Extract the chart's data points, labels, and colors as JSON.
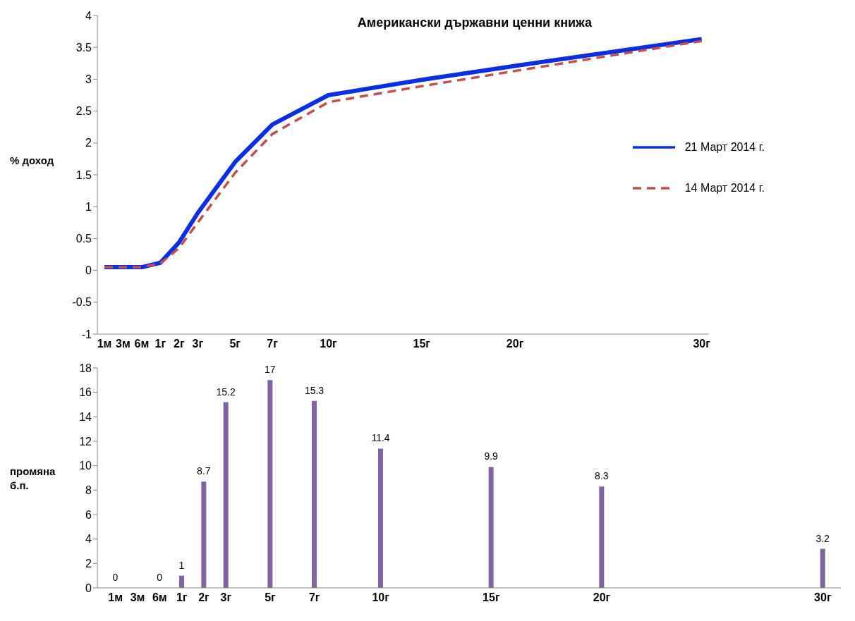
{
  "chart_data": [
    {
      "type": "line",
      "title": "Американски държавни ценни книжа",
      "ylabel": "% доход",
      "categories": [
        "1м",
        "3м",
        "6м",
        "1г",
        "2г",
        "3г",
        null,
        "5г",
        null,
        "7г",
        null,
        null,
        "10г",
        null,
        null,
        null,
        null,
        "15г",
        null,
        null,
        null,
        null,
        "20г",
        null,
        null,
        null,
        null,
        null,
        null,
        null,
        null,
        null,
        "30г"
      ],
      "series": [
        {
          "name": "21 Март 2014 г.",
          "color": "#0a2ee0",
          "line_style": "solid",
          "values": [
            0.05,
            0.05,
            0.05,
            0.12,
            0.44,
            0.9,
            null,
            1.7,
            null,
            2.29,
            null,
            null,
            2.75,
            null,
            null,
            null,
            null,
            2.99,
            null,
            null,
            null,
            null,
            3.21,
            null,
            null,
            null,
            null,
            null,
            null,
            null,
            null,
            null,
            3.63
          ]
        },
        {
          "name": "14 Март 2014 г.",
          "color": "#c0504d",
          "line_style": "dashed",
          "values": [
            0.05,
            0.05,
            0.05,
            0.11,
            0.35,
            0.75,
            null,
            1.53,
            null,
            2.14,
            null,
            null,
            2.64,
            null,
            null,
            null,
            null,
            2.89,
            null,
            null,
            null,
            null,
            3.13,
            null,
            null,
            null,
            null,
            null,
            null,
            null,
            null,
            null,
            3.6
          ]
        }
      ],
      "ylim": [
        -1,
        4
      ],
      "yticks": [
        -1,
        -0.5,
        0,
        0.5,
        1,
        1.5,
        2,
        2.5,
        3,
        3.5,
        4
      ],
      "grid": false,
      "legend": "right",
      "marker": "none"
    },
    {
      "type": "bar",
      "ylabel": "промяна б.п.",
      "categories": [
        "1м",
        "3м",
        "6м",
        "1г",
        "2г",
        "3г",
        null,
        "5г",
        null,
        "7г",
        null,
        null,
        "10г",
        null,
        null,
        null,
        null,
        "15г",
        null,
        null,
        null,
        null,
        "20г",
        null,
        null,
        null,
        null,
        null,
        null,
        null,
        null,
        null,
        "30г"
      ],
      "values": [
        0,
        null,
        0,
        1,
        8.7,
        15.2,
        null,
        17,
        null,
        15.3,
        null,
        null,
        11.4,
        null,
        null,
        null,
        null,
        9.9,
        null,
        null,
        null,
        null,
        8.3,
        null,
        null,
        null,
        null,
        null,
        null,
        null,
        null,
        null,
        3.2
      ],
      "color": "#8064a2",
      "ylim": [
        0,
        18
      ],
      "yticks": [
        0,
        2,
        4,
        6,
        8,
        10,
        12,
        14,
        16,
        18
      ],
      "grid": false,
      "data_labels": true
    }
  ]
}
